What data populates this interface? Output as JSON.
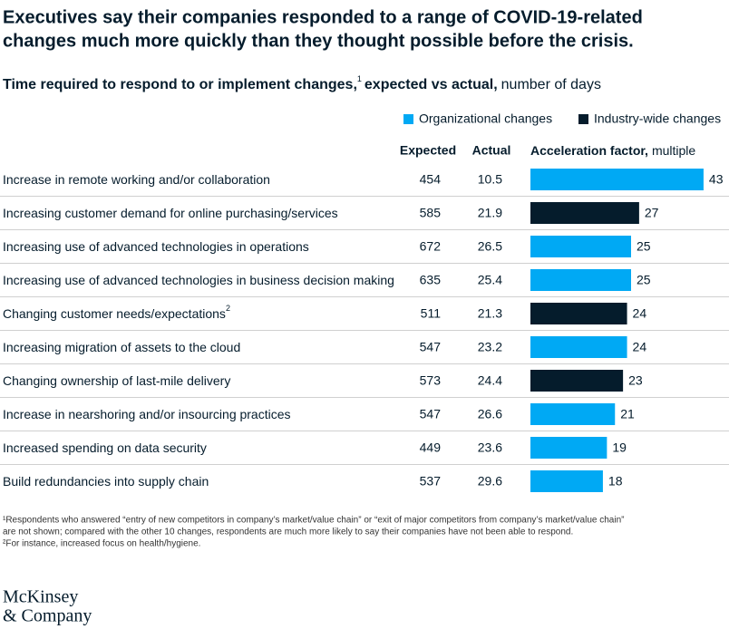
{
  "chart_data": {
    "type": "bar",
    "title": [
      "Executives say their companies responded to a range of COVID-19-related",
      "changes much more quickly than they thought possible before the crisis."
    ],
    "subtitle": [
      "Time required to respond to or implement changes,",
      "1",
      "expected vs actual,",
      "number of days"
    ],
    "columns": [
      "Expected",
      "Actual"
    ],
    "factor_header": "Acceleration factor,",
    "factor_unit": "multiple",
    "legend": [
      {
        "name": "Organizational changes",
        "color": "#00a9f4"
      },
      {
        "name": "Industry-wide changes",
        "color": "#051c2c"
      }
    ],
    "categories": [
      "Increase in remote working and/or collaboration",
      "Increasing customer demand for online purchasing/services",
      "Increasing use of advanced technologies in operations",
      "Increasing use of advanced technologies in business decision making",
      "Changing customer needs/expectations",
      "Increasing migration of assets to the cloud",
      "Changing ownership of last-mile delivery",
      "Increase in nearshoring and/or insourcing practices",
      "Increased spending on data security",
      "Build redundancies into supply chain"
    ],
    "category_marks": [
      null,
      null,
      null,
      null,
      "2",
      null,
      null,
      null,
      null,
      null
    ],
    "expected": [
      454,
      585,
      672,
      635,
      511,
      547,
      573,
      547,
      449,
      537
    ],
    "actual": [
      10.5,
      21.9,
      26.5,
      25.4,
      21.3,
      23.2,
      24.4,
      26.6,
      23.6,
      29.6
    ],
    "values": [
      43,
      27,
      25,
      25,
      24,
      24,
      23,
      21,
      19,
      18
    ],
    "colors": [
      "#00a9f4",
      "#051c2c",
      "#00a9f4",
      "#00a9f4",
      "#051c2c",
      "#00a9f4",
      "#051c2c",
      "#00a9f4",
      "#00a9f4",
      "#00a9f4"
    ],
    "footnotes": [
      "¹Respondents who answered “entry of new competitors in company’s market/value chain” or “exit of major competitors from company’s market/value chain”",
      " are not shown; compared with the other 10 changes, respondents are much more likely to say their companies have not been able to respond.",
      "²For instance, increased focus on health/hygiene."
    ],
    "source": [
      "McKinsey",
      "& Company"
    ]
  }
}
